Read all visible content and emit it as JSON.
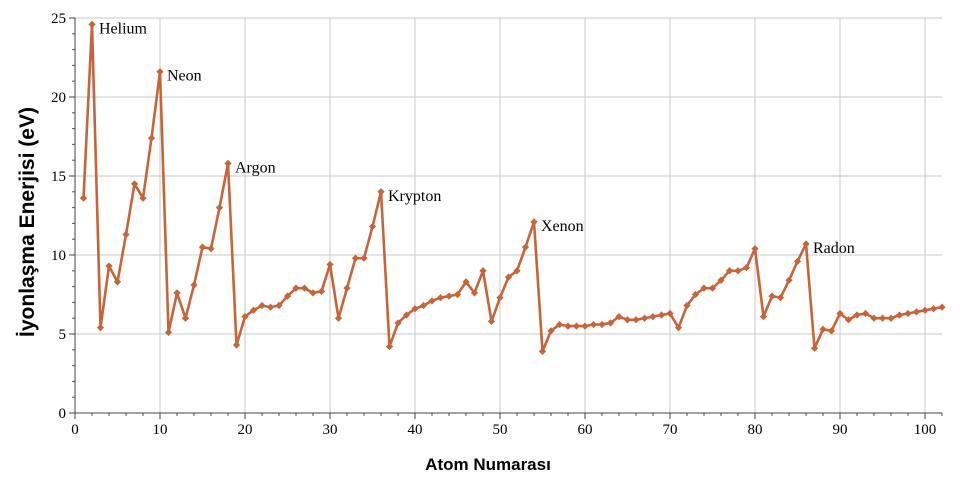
{
  "chart_data": {
    "type": "line",
    "xlabel": "Atom Numarası",
    "ylabel": "İyonlaşma Enerjisi (eV)",
    "xlim": [
      0,
      102
    ],
    "ylim": [
      0,
      25
    ],
    "xticks": [
      0,
      10,
      20,
      30,
      40,
      50,
      60,
      70,
      80,
      90,
      100
    ],
    "yticks": [
      0,
      5,
      10,
      15,
      20,
      25
    ],
    "grid": true,
    "line_color": "#c8643a",
    "series": [
      {
        "x": [
          1,
          2,
          3,
          4,
          5,
          6,
          7,
          8,
          9,
          10,
          11,
          12,
          13,
          14,
          15,
          16,
          17,
          18,
          19,
          20,
          21,
          22,
          23,
          24,
          25,
          26,
          27,
          28,
          29,
          30,
          31,
          32,
          33,
          34,
          35,
          36,
          37,
          38,
          39,
          40,
          41,
          42,
          43,
          44,
          45,
          46,
          47,
          48,
          49,
          50,
          51,
          52,
          53,
          54,
          55,
          56,
          57,
          58,
          59,
          60,
          61,
          62,
          63,
          64,
          65,
          66,
          67,
          68,
          69,
          70,
          71,
          72,
          73,
          74,
          75,
          76,
          77,
          78,
          79,
          80,
          81,
          82,
          83,
          84,
          85,
          86,
          87,
          88,
          89,
          90,
          91,
          92,
          93,
          94,
          95,
          96,
          97,
          98,
          99,
          100,
          101,
          102
        ],
        "y": [
          13.6,
          24.6,
          5.4,
          9.3,
          8.3,
          11.3,
          14.5,
          13.6,
          17.4,
          21.6,
          5.1,
          7.6,
          6.0,
          8.1,
          10.5,
          10.4,
          13.0,
          15.8,
          4.3,
          6.1,
          6.5,
          6.8,
          6.7,
          6.8,
          7.4,
          7.9,
          7.9,
          7.6,
          7.7,
          9.4,
          6.0,
          7.9,
          9.8,
          9.8,
          11.8,
          14.0,
          4.2,
          5.7,
          6.2,
          6.6,
          6.8,
          7.1,
          7.3,
          7.4,
          7.5,
          8.3,
          7.6,
          9.0,
          5.8,
          7.3,
          8.6,
          9.0,
          10.5,
          12.1,
          3.9,
          5.2,
          5.6,
          5.5,
          5.5,
          5.5,
          5.6,
          5.6,
          5.7,
          6.1,
          5.9,
          5.9,
          6.0,
          6.1,
          6.2,
          6.3,
          5.4,
          6.8,
          7.5,
          7.9,
          7.9,
          8.4,
          9.0,
          9.0,
          9.2,
          10.4,
          6.1,
          7.4,
          7.3,
          8.4,
          9.6,
          10.7,
          4.1,
          5.3,
          5.2,
          6.3,
          5.9,
          6.2,
          6.3,
          6.0,
          6.0,
          6.0,
          6.2,
          6.3,
          6.4,
          6.5,
          6.6,
          6.7
        ]
      }
    ],
    "annotations": [
      {
        "label": "Helium",
        "x": 2,
        "y": 24.6
      },
      {
        "label": "Neon",
        "x": 10,
        "y": 21.6
      },
      {
        "label": "Argon",
        "x": 18,
        "y": 15.8
      },
      {
        "label": "Krypton",
        "x": 36,
        "y": 14.0
      },
      {
        "label": "Xenon",
        "x": 54,
        "y": 12.1
      },
      {
        "label": "Radon",
        "x": 86,
        "y": 10.7
      }
    ]
  }
}
